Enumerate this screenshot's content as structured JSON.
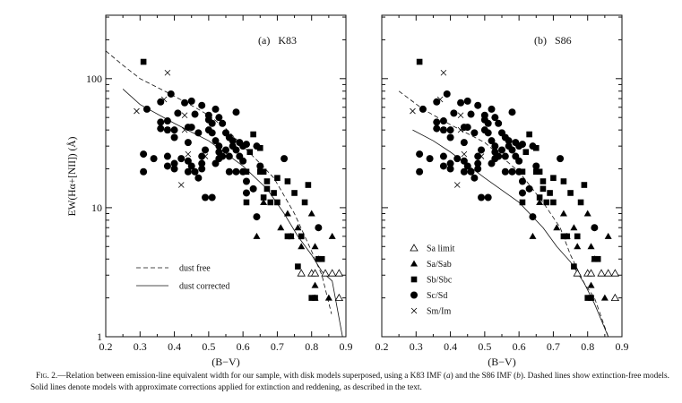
{
  "figure": {
    "ylabel": "EW(Hα+[NII])  (Å)",
    "xlabel": "(B−V)",
    "caption": {
      "fig_label": "Fig. 2.",
      "text_1": "—Relation between emission-line equivalent width for our sample, with disk models superposed, using a K83 IMF (",
      "a": "a",
      "text_2": ") and the S86 IMF (",
      "b": "b",
      "text_3": "). Dashed lines show extinction-free models. Solid lines denote models with approximate corrections applied for extinction and reddening, as described in the text."
    }
  },
  "chart_data": [
    {
      "type": "scatter",
      "title": "(a)   K83",
      "xlabel": "(B−V)",
      "ylabel": "EW(Hα+[NII])  (Å)",
      "xlim": [
        0.2,
        0.9
      ],
      "ylim": [
        1,
        310
      ],
      "yscale": "log",
      "xticks": [
        "0.2",
        "0.3",
        "0.4",
        "0.5",
        "0.6",
        "0.7",
        "0.8",
        "0.9"
      ],
      "yticks": [
        "1",
        "10",
        "100"
      ],
      "legend": {
        "placement": "bottom-left",
        "entries": [
          {
            "label": "dust free",
            "style": "dashed"
          },
          {
            "label": "dust corrected",
            "style": "solid"
          }
        ]
      },
      "models": {
        "dust_free": [
          [
            0.2,
            164
          ],
          [
            0.25,
            127
          ],
          [
            0.3,
            100
          ],
          [
            0.38,
            78
          ],
          [
            0.45,
            62
          ],
          [
            0.5,
            52
          ],
          [
            0.55,
            41
          ],
          [
            0.6,
            30
          ],
          [
            0.65,
            22
          ],
          [
            0.69,
            17
          ],
          [
            0.75,
            9
          ],
          [
            0.8,
            4.6
          ],
          [
            0.83,
            3
          ],
          [
            0.858,
            1.5
          ]
        ],
        "dust_corrected": [
          [
            0.25,
            83
          ],
          [
            0.3,
            63
          ],
          [
            0.4,
            45
          ],
          [
            0.5,
            33
          ],
          [
            0.6,
            21
          ],
          [
            0.67,
            14
          ],
          [
            0.72,
            9
          ],
          [
            0.76,
            6
          ],
          [
            0.8,
            4.3
          ],
          [
            0.83,
            3.2
          ],
          [
            0.86,
            2.7
          ],
          [
            0.89,
            1
          ]
        ]
      }
    },
    {
      "type": "scatter",
      "title": "(b)   S86",
      "xlabel": "(B−V)",
      "xlim": [
        0.2,
        0.9
      ],
      "ylim": [
        1,
        310
      ],
      "yscale": "log",
      "xticks": [
        "0.2",
        "0.3",
        "0.4",
        "0.5",
        "0.6",
        "0.7",
        "0.8",
        "0.9"
      ],
      "legend": {
        "placement": "bottom-left",
        "entries": [
          {
            "label": "Sa limit",
            "marker": "open-triangle"
          },
          {
            "label": "Sa/Sab",
            "marker": "filled-triangle"
          },
          {
            "label": "Sb/Sbc",
            "marker": "filled-square"
          },
          {
            "label": "Sc/Sd",
            "marker": "filled-circle"
          },
          {
            "label": "Sm/Im",
            "marker": "cross"
          }
        ]
      },
      "models": {
        "dust_free": [
          [
            0.25,
            80
          ],
          [
            0.32,
            58
          ],
          [
            0.4,
            44
          ],
          [
            0.5,
            32
          ],
          [
            0.6,
            19
          ],
          [
            0.67,
            11
          ],
          [
            0.72,
            7
          ],
          [
            0.75,
            4.3
          ],
          [
            0.79,
            2.6
          ],
          [
            0.82,
            2
          ],
          [
            0.86,
            1
          ]
        ],
        "dust_corrected": [
          [
            0.29,
            40
          ],
          [
            0.35,
            33
          ],
          [
            0.4,
            27
          ],
          [
            0.5,
            17
          ],
          [
            0.6,
            11
          ],
          [
            0.67,
            7
          ],
          [
            0.71,
            5
          ],
          [
            0.75,
            3.8
          ],
          [
            0.79,
            2.6
          ],
          [
            0.82,
            1.8
          ],
          [
            0.86,
            1
          ]
        ]
      }
    }
  ],
  "sample": {
    "Sa limit": [
      [
        0.77,
        3.1
      ],
      [
        0.8,
        3.1
      ],
      [
        0.81,
        3.1
      ],
      [
        0.84,
        3.1
      ],
      [
        0.86,
        3.1
      ],
      [
        0.88,
        3.1
      ],
      [
        0.88,
        2.0
      ]
    ],
    "Sa/Sab": [
      [
        0.64,
        6
      ],
      [
        0.66,
        11
      ],
      [
        0.73,
        9
      ],
      [
        0.71,
        7
      ],
      [
        0.74,
        6
      ],
      [
        0.76,
        7
      ],
      [
        0.77,
        5
      ],
      [
        0.8,
        9
      ],
      [
        0.81,
        5
      ],
      [
        0.82,
        4
      ],
      [
        0.81,
        2.5
      ],
      [
        0.81,
        2
      ],
      [
        0.85,
        2
      ],
      [
        0.86,
        6
      ]
    ],
    "Sb/Sbc": [
      [
        0.31,
        135
      ],
      [
        0.63,
        37
      ],
      [
        0.65,
        29
      ],
      [
        0.62,
        27
      ],
      [
        0.61,
        19
      ],
      [
        0.65,
        19
      ],
      [
        0.66,
        19
      ],
      [
        0.7,
        17
      ],
      [
        0.73,
        16
      ],
      [
        0.75,
        13
      ],
      [
        0.79,
        15
      ],
      [
        0.67,
        16
      ],
      [
        0.67,
        14
      ],
      [
        0.69,
        13
      ],
      [
        0.66,
        12
      ],
      [
        0.68,
        11
      ],
      [
        0.7,
        11
      ],
      [
        0.61,
        11
      ],
      [
        0.78,
        11
      ],
      [
        0.73,
        6
      ],
      [
        0.74,
        6
      ],
      [
        0.77,
        6
      ],
      [
        0.82,
        4
      ],
      [
        0.83,
        4
      ],
      [
        0.76,
        3.5
      ],
      [
        0.8,
        2
      ],
      [
        0.81,
        2
      ]
    ],
    "Sc/Sd": [
      [
        0.32,
        58
      ],
      [
        0.39,
        76
      ],
      [
        0.36,
        66
      ],
      [
        0.43,
        65
      ],
      [
        0.45,
        67
      ],
      [
        0.48,
        62
      ],
      [
        0.41,
        54
      ],
      [
        0.36,
        46
      ],
      [
        0.36,
        41
      ],
      [
        0.38,
        47
      ],
      [
        0.38,
        40
      ],
      [
        0.4,
        40
      ],
      [
        0.4,
        35
      ],
      [
        0.44,
        32
      ],
      [
        0.45,
        42
      ],
      [
        0.44,
        42
      ],
      [
        0.46,
        53
      ],
      [
        0.5,
        48
      ],
      [
        0.51,
        45
      ],
      [
        0.52,
        58
      ],
      [
        0.53,
        50
      ],
      [
        0.54,
        45
      ],
      [
        0.58,
        55
      ],
      [
        0.5,
        40
      ],
      [
        0.51,
        38
      ],
      [
        0.52,
        33
      ],
      [
        0.53,
        30
      ],
      [
        0.55,
        38
      ],
      [
        0.56,
        35
      ],
      [
        0.55,
        28
      ],
      [
        0.57,
        30
      ],
      [
        0.58,
        28
      ],
      [
        0.59,
        32
      ],
      [
        0.6,
        30
      ],
      [
        0.61,
        31
      ],
      [
        0.59,
        25
      ],
      [
        0.53,
        27
      ],
      [
        0.56,
        25
      ],
      [
        0.49,
        28
      ],
      [
        0.48,
        25
      ],
      [
        0.6,
        23
      ],
      [
        0.64,
        30
      ],
      [
        0.31,
        26
      ],
      [
        0.31,
        19
      ],
      [
        0.34,
        24
      ],
      [
        0.38,
        25
      ],
      [
        0.38,
        21
      ],
      [
        0.4,
        22
      ],
      [
        0.4,
        20
      ],
      [
        0.42,
        24
      ],
      [
        0.44,
        23
      ],
      [
        0.45,
        21
      ],
      [
        0.44,
        19
      ],
      [
        0.46,
        19
      ],
      [
        0.47,
        17
      ],
      [
        0.48,
        20
      ],
      [
        0.48,
        22
      ],
      [
        0.52,
        22
      ],
      [
        0.53,
        24
      ],
      [
        0.54,
        25
      ],
      [
        0.56,
        19
      ],
      [
        0.58,
        19
      ],
      [
        0.6,
        19
      ],
      [
        0.61,
        16
      ],
      [
        0.63,
        14
      ],
      [
        0.61,
        13
      ],
      [
        0.65,
        21
      ],
      [
        0.49,
        12
      ],
      [
        0.51,
        12
      ],
      [
        0.64,
        8.5
      ],
      [
        0.72,
        24
      ],
      [
        0.82,
        7
      ],
      [
        0.57,
        33
      ],
      [
        0.5,
        52
      ],
      [
        0.47,
        38
      ]
    ],
    "Sm/Im": [
      [
        0.29,
        56
      ],
      [
        0.38,
        111
      ],
      [
        0.37,
        69
      ],
      [
        0.43,
        52
      ],
      [
        0.44,
        26
      ],
      [
        0.49,
        25
      ],
      [
        0.42,
        15
      ],
      [
        0.43,
        40
      ],
      [
        0.38,
        40
      ]
    ]
  }
}
